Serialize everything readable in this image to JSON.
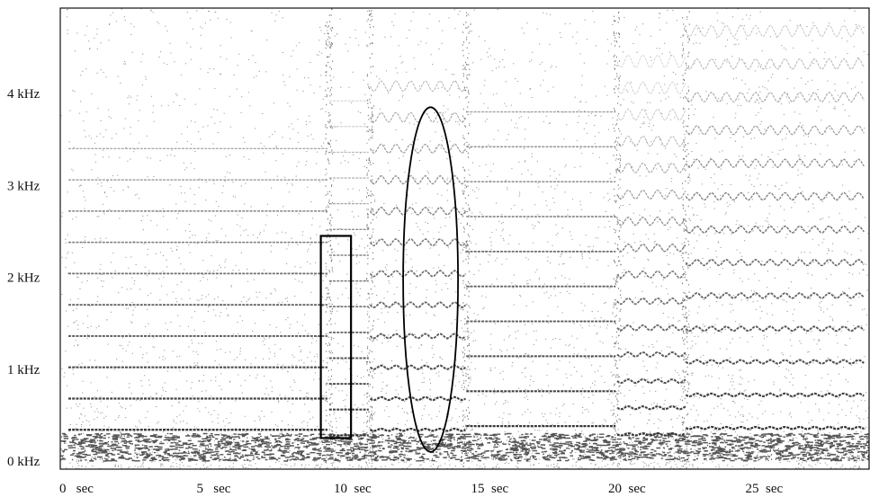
{
  "chart_data": {
    "type": "heatmap",
    "title": "",
    "xlabel": "",
    "ylabel": "",
    "xlim": [
      0,
      29
    ],
    "ylim": [
      0,
      5
    ],
    "x_ticks": [
      {
        "value": 0,
        "label": "0   sec"
      },
      {
        "value": 5,
        "label": "5   sec"
      },
      {
        "value": 10,
        "label": "10  sec"
      },
      {
        "value": 15,
        "label": "15  sec"
      },
      {
        "value": 20,
        "label": "20  sec"
      },
      {
        "value": 25,
        "label": "25  sec"
      }
    ],
    "y_ticks": [
      {
        "value": 0,
        "label": "0 kHz"
      },
      {
        "value": 1,
        "label": "1 kHz"
      },
      {
        "value": 2,
        "label": "2 kHz"
      },
      {
        "value": 3,
        "label": "3 kHz"
      },
      {
        "value": 4,
        "label": "4 kHz"
      }
    ],
    "colormap": "grayscale (white = low energy, black = high energy)",
    "grid": false,
    "notes": [
      {
        "sec": [
          0.0,
          9.5
        ],
        "fundamental_khz": 0.34,
        "harmonics": 10,
        "vibrato": false
      },
      {
        "sec": [
          9.5,
          11.0
        ],
        "fundamental_khz": 0.28,
        "harmonics": 14,
        "vibrato": false
      },
      {
        "sec": [
          11.0,
          14.5
        ],
        "fundamental_khz": 0.34,
        "harmonics": 12,
        "vibrato": true
      },
      {
        "sec": [
          14.5,
          20.0
        ],
        "fundamental_khz": 0.38,
        "harmonics": 10,
        "vibrato": false
      },
      {
        "sec": [
          20.0,
          22.5
        ],
        "fundamental_khz": 0.29,
        "harmonics": 15,
        "vibrato": true
      },
      {
        "sec": [
          22.5,
          29.0
        ],
        "fundamental_khz": 0.36,
        "harmonics": 13,
        "vibrato": true
      }
    ],
    "annotations": [
      {
        "shape": "rectangle",
        "x": [
          9.2,
          10.3
        ],
        "y": [
          0.25,
          2.45
        ]
      },
      {
        "shape": "ellipse",
        "x": [
          12.2,
          14.2
        ],
        "y": [
          0.1,
          3.85
        ]
      }
    ]
  }
}
